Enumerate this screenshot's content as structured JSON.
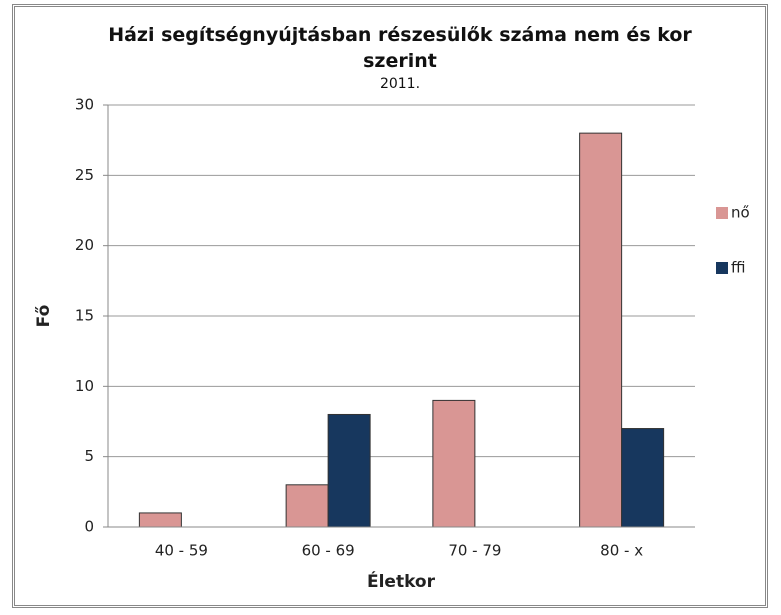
{
  "chart_data": {
    "type": "bar",
    "title": "Házi segítségnyújtásban részesülők száma nem és kor szerint",
    "subtitle": "2011.",
    "y_label": "Fő",
    "x_label": "Életkor",
    "categories": [
      "40 - 59",
      "60 - 69",
      "70 - 79",
      "80 - x"
    ],
    "series": [
      {
        "name": "nő",
        "color": "#d99694",
        "values": [
          1,
          3,
          9,
          28
        ]
      },
      {
        "name": "ffi",
        "color": "#17375e",
        "values": [
          0,
          8,
          0,
          7
        ]
      }
    ],
    "ylim": [
      0,
      30
    ],
    "yticks": [
      0,
      5,
      10,
      15,
      20,
      25,
      30
    ],
    "grid": true,
    "legend": "right"
  }
}
